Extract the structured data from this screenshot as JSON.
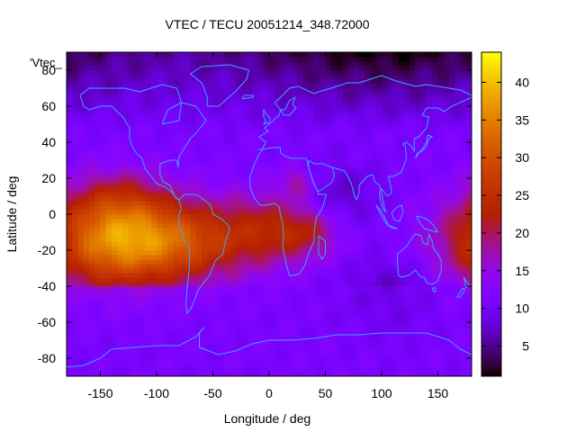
{
  "chart_data": {
    "type": "heatmap",
    "title": "VTEC / TECU 20051214_348.72000",
    "xlabel": "Longitude / deg",
    "ylabel": "Latitude / deg",
    "key_label": "'Vtec_",
    "xlim": [
      -180,
      180
    ],
    "ylim": [
      -90,
      90
    ],
    "x_ticks": [
      -150,
      -100,
      -50,
      0,
      50,
      100,
      150
    ],
    "y_ticks": [
      -80,
      -60,
      -40,
      -20,
      0,
      20,
      40,
      60,
      80
    ],
    "colorbar": {
      "range": [
        1,
        44
      ],
      "ticks": [
        5,
        10,
        15,
        20,
        25,
        30,
        35,
        40
      ],
      "palette": "black-blue-purple-red-orange-yellow"
    },
    "grid": {
      "lon_step": 5,
      "lat_step": 2.5
    },
    "field_components": [
      {
        "lon": -135,
        "lat": -15,
        "amp": 24,
        "lon_sigma": 45,
        "lat_sigma": 18
      },
      {
        "lon": -65,
        "lat": -15,
        "amp": 11,
        "lon_sigma": 40,
        "lat_sigma": 15
      },
      {
        "lon": 0,
        "lat": -8,
        "amp": 9,
        "lon_sigma": 30,
        "lat_sigma": 14
      },
      {
        "lon": 35,
        "lat": -10,
        "amp": 7,
        "lon_sigma": 20,
        "lat_sigma": 10
      },
      {
        "lon": 25,
        "lat": 18,
        "amp": 6,
        "lon_sigma": 12,
        "lat_sigma": 6
      },
      {
        "lon": -135,
        "lat": 8,
        "amp": 6,
        "lon_sigma": 30,
        "lat_sigma": 12
      }
    ],
    "field_background": 11,
    "field_north_drop": {
      "lat_start": 45,
      "per_deg": 0.22,
      "lon": 100,
      "lon_sigma": 80
    },
    "field_south_pockets": [
      {
        "lon": 110,
        "lat": -45,
        "amp": -4,
        "lon_sigma": 30,
        "lat_sigma": 15
      },
      {
        "lon": 60,
        "lat": 10,
        "amp": -4,
        "lon_sigma": 25,
        "lat_sigma": 12
      }
    ],
    "field_south_band": {
      "lat_below": -40,
      "value": 11
    },
    "coastline_color": "#3fa0ff",
    "coastlines": [
      [
        [
          -168,
          66
        ],
        [
          -160,
          70
        ],
        [
          -145,
          70
        ],
        [
          -128,
          70
        ],
        [
          -115,
          68
        ],
        [
          -95,
          72
        ],
        [
          -82,
          70
        ],
        [
          -78,
          62
        ],
        [
          -90,
          58
        ],
        [
          -95,
          50
        ],
        [
          -80,
          52
        ],
        [
          -78,
          62
        ],
        [
          -65,
          60
        ],
        [
          -56,
          52
        ],
        [
          -65,
          45
        ],
        [
          -70,
          42
        ],
        [
          -76,
          36
        ],
        [
          -80,
          32
        ],
        [
          -81,
          26
        ],
        [
          -82,
          30
        ],
        [
          -88,
          30
        ],
        [
          -97,
          28
        ],
        [
          -97,
          22
        ],
        [
          -94,
          18
        ],
        [
          -88,
          16
        ],
        [
          -84,
          10
        ],
        [
          -80,
          8
        ],
        [
          -83,
          9
        ],
        [
          -86,
          12
        ],
        [
          -92,
          15
        ],
        [
          -100,
          17
        ],
        [
          -106,
          22
        ],
        [
          -110,
          25
        ],
        [
          -113,
          31
        ],
        [
          -118,
          34
        ],
        [
          -122,
          38
        ],
        [
          -124,
          42
        ],
        [
          -124,
          48
        ],
        [
          -130,
          54
        ],
        [
          -140,
          60
        ],
        [
          -150,
          60
        ],
        [
          -160,
          58
        ],
        [
          -165,
          60
        ],
        [
          -168,
          66
        ]
      ],
      [
        [
          -80,
          8
        ],
        [
          -75,
          11
        ],
        [
          -67,
          11
        ],
        [
          -62,
          10
        ],
        [
          -52,
          5
        ],
        [
          -50,
          0
        ],
        [
          -44,
          -2
        ],
        [
          -38,
          -5
        ],
        [
          -35,
          -8
        ],
        [
          -39,
          -15
        ],
        [
          -41,
          -22
        ],
        [
          -48,
          -26
        ],
        [
          -53,
          -34
        ],
        [
          -58,
          -38
        ],
        [
          -63,
          -42
        ],
        [
          -66,
          -47
        ],
        [
          -69,
          -52
        ],
        [
          -73,
          -55
        ],
        [
          -74,
          -50
        ],
        [
          -73,
          -42
        ],
        [
          -71,
          -30
        ],
        [
          -71,
          -18
        ],
        [
          -76,
          -14
        ],
        [
          -80,
          -6
        ],
        [
          -80,
          0
        ],
        [
          -78,
          3
        ],
        [
          -80,
          8
        ]
      ],
      [
        [
          -55,
          60
        ],
        [
          -45,
          60
        ],
        [
          -30,
          68
        ],
        [
          -20,
          75
        ],
        [
          -18,
          80
        ],
        [
          -35,
          83
        ],
        [
          -60,
          82
        ],
        [
          -70,
          78
        ],
        [
          -60,
          73
        ],
        [
          -55,
          65
        ],
        [
          -55,
          60
        ]
      ],
      [
        [
          -10,
          36
        ],
        [
          -6,
          36
        ],
        [
          -3,
          40
        ],
        [
          -9,
          43
        ],
        [
          -1,
          46
        ],
        [
          -4,
          48
        ],
        [
          2,
          51
        ],
        [
          5,
          53
        ],
        [
          9,
          55
        ],
        [
          10,
          58
        ],
        [
          5,
          62
        ],
        [
          12,
          66
        ],
        [
          18,
          70
        ],
        [
          26,
          71
        ],
        [
          33,
          69
        ],
        [
          40,
          67
        ],
        [
          44,
          68
        ],
        [
          55,
          70
        ],
        [
          70,
          73
        ],
        [
          80,
          73
        ],
        [
          100,
          77
        ],
        [
          113,
          74
        ],
        [
          130,
          71
        ],
        [
          140,
          72
        ],
        [
          160,
          70
        ],
        [
          170,
          69
        ],
        [
          180,
          66
        ]
      ],
      [
        [
          10,
          58
        ],
        [
          13,
          55
        ],
        [
          18,
          55
        ],
        [
          21,
          57
        ],
        [
          24,
          59
        ],
        [
          21,
          61
        ],
        [
          23,
          65
        ],
        [
          18,
          63
        ],
        [
          14,
          58
        ],
        [
          10,
          58
        ]
      ],
      [
        [
          -17,
          21
        ],
        [
          -17,
          15
        ],
        [
          -13,
          9
        ],
        [
          -8,
          5
        ],
        [
          -3,
          5
        ],
        [
          5,
          6
        ],
        [
          9,
          4
        ],
        [
          10,
          0
        ],
        [
          12,
          -5
        ],
        [
          13,
          -12
        ],
        [
          12,
          -18
        ],
        [
          15,
          -27
        ],
        [
          18,
          -34
        ],
        [
          22,
          -34
        ],
        [
          27,
          -33
        ],
        [
          32,
          -28
        ],
        [
          35,
          -22
        ],
        [
          40,
          -15
        ],
        [
          40,
          -10
        ],
        [
          42,
          -2
        ],
        [
          47,
          3
        ],
        [
          51,
          11
        ],
        [
          44,
          11
        ],
        [
          43,
          13
        ],
        [
          39,
          18
        ],
        [
          35,
          26
        ],
        [
          33,
          31
        ],
        [
          28,
          31
        ],
        [
          20,
          31
        ],
        [
          15,
          32
        ],
        [
          10,
          34
        ],
        [
          10,
          37
        ],
        [
          3,
          37
        ],
        [
          -6,
          36
        ],
        [
          -10,
          32
        ],
        [
          -13,
          28
        ],
        [
          -17,
          21
        ]
      ],
      [
        [
          44,
          -12
        ],
        [
          50,
          -15
        ],
        [
          50,
          -22
        ],
        [
          47,
          -25
        ],
        [
          44,
          -22
        ],
        [
          44,
          -12
        ]
      ],
      [
        [
          35,
          30
        ],
        [
          40,
          28
        ],
        [
          48,
          28
        ],
        [
          56,
          26
        ],
        [
          58,
          22
        ],
        [
          56,
          18
        ],
        [
          52,
          16
        ],
        [
          45,
          13
        ],
        [
          43,
          13
        ],
        [
          39,
          18
        ],
        [
          35,
          26
        ],
        [
          35,
          30
        ]
      ],
      [
        [
          56,
          26
        ],
        [
          62,
          25
        ],
        [
          67,
          24
        ],
        [
          70,
          21
        ],
        [
          73,
          17
        ],
        [
          76,
          10
        ],
        [
          78,
          8
        ],
        [
          80,
          12
        ],
        [
          80,
          16
        ],
        [
          87,
          21
        ],
        [
          92,
          22
        ],
        [
          94,
          18
        ],
        [
          98,
          16
        ],
        [
          100,
          12
        ],
        [
          103,
          2
        ],
        [
          104,
          1
        ],
        [
          101,
          3
        ],
        [
          99,
          8
        ],
        [
          98,
          12
        ],
        [
          100,
          14
        ],
        [
          105,
          10
        ],
        [
          109,
          12
        ],
        [
          108,
          16
        ],
        [
          106,
          21
        ],
        [
          110,
          21
        ],
        [
          117,
          23
        ],
        [
          120,
          27
        ],
        [
          122,
          31
        ],
        [
          121,
          38
        ],
        [
          119,
          39
        ],
        [
          122,
          40
        ],
        [
          126,
          38
        ],
        [
          129,
          35
        ],
        [
          129,
          42
        ],
        [
          133,
          43
        ],
        [
          140,
          48
        ],
        [
          142,
          54
        ],
        [
          136,
          55
        ],
        [
          140,
          59
        ],
        [
          150,
          59
        ],
        [
          156,
          57
        ],
        [
          162,
          60
        ],
        [
          170,
          62
        ],
        [
          180,
          65
        ]
      ],
      [
        [
          130,
          31
        ],
        [
          132,
          34
        ],
        [
          136,
          35
        ],
        [
          140,
          38
        ],
        [
          142,
          42
        ],
        [
          145,
          43
        ],
        [
          141,
          44
        ],
        [
          140,
          40
        ],
        [
          136,
          36
        ],
        [
          133,
          34
        ],
        [
          130,
          31
        ]
      ],
      [
        [
          114,
          -22
        ],
        [
          114,
          -26
        ],
        [
          115,
          -34
        ],
        [
          118,
          -35
        ],
        [
          124,
          -34
        ],
        [
          130,
          -31
        ],
        [
          135,
          -35
        ],
        [
          138,
          -35
        ],
        [
          140,
          -38
        ],
        [
          145,
          -39
        ],
        [
          150,
          -37
        ],
        [
          153,
          -31
        ],
        [
          153,
          -26
        ],
        [
          150,
          -22
        ],
        [
          146,
          -19
        ],
        [
          145,
          -15
        ],
        [
          142,
          -11
        ],
        [
          141,
          -17
        ],
        [
          137,
          -16
        ],
        [
          135,
          -12
        ],
        [
          130,
          -11
        ],
        [
          126,
          -14
        ],
        [
          122,
          -18
        ],
        [
          114,
          -22
        ]
      ],
      [
        [
          145,
          -41
        ],
        [
          148,
          -41
        ],
        [
          148,
          -43
        ],
        [
          146,
          -43
        ],
        [
          145,
          -41
        ]
      ],
      [
        [
          95,
          5
        ],
        [
          98,
          3
        ],
        [
          102,
          -1
        ],
        [
          106,
          -6
        ],
        [
          104,
          -5
        ],
        [
          100,
          -1
        ],
        [
          95,
          5
        ]
      ],
      [
        [
          105,
          -6
        ],
        [
          110,
          -7
        ],
        [
          114,
          -8
        ],
        [
          110,
          -8
        ],
        [
          105,
          -6
        ]
      ],
      [
        [
          109,
          1
        ],
        [
          114,
          4
        ],
        [
          118,
          5
        ],
        [
          119,
          1
        ],
        [
          116,
          -4
        ],
        [
          111,
          -3
        ],
        [
          109,
          1
        ]
      ],
      [
        [
          131,
          -1
        ],
        [
          137,
          -2
        ],
        [
          141,
          -3
        ],
        [
          146,
          -6
        ],
        [
          150,
          -10
        ],
        [
          143,
          -9
        ],
        [
          138,
          -8
        ],
        [
          133,
          -4
        ],
        [
          131,
          -1
        ]
      ],
      [
        [
          173,
          -35
        ],
        [
          176,
          -38
        ],
        [
          178,
          -39
        ],
        [
          175,
          -41
        ],
        [
          173,
          -35
        ]
      ],
      [
        [
          172,
          -41
        ],
        [
          174,
          -42
        ],
        [
          170,
          -46
        ],
        [
          167,
          -46
        ],
        [
          172,
          -41
        ]
      ],
      [
        [
          -180,
          -85
        ],
        [
          -165,
          -84
        ],
        [
          -150,
          -80
        ],
        [
          -140,
          -75
        ],
        [
          -120,
          -74
        ],
        [
          -100,
          -73
        ],
        [
          -80,
          -73
        ],
        [
          -65,
          -68
        ],
        [
          -58,
          -63
        ],
        [
          -62,
          -66
        ],
        [
          -62,
          -74
        ],
        [
          -45,
          -78
        ],
        [
          -30,
          -76
        ],
        [
          -15,
          -72
        ],
        [
          0,
          -70
        ],
        [
          20,
          -70
        ],
        [
          40,
          -69
        ],
        [
          60,
          -67
        ],
        [
          80,
          -67
        ],
        [
          100,
          -66
        ],
        [
          120,
          -66
        ],
        [
          140,
          -66
        ],
        [
          160,
          -70
        ],
        [
          170,
          -75
        ],
        [
          180,
          -78
        ]
      ],
      [
        [
          -5,
          50
        ],
        [
          0,
          51
        ],
        [
          1,
          53
        ],
        [
          -3,
          56
        ],
        [
          -5,
          58
        ],
        [
          -5,
          54
        ],
        [
          -3,
          52
        ],
        [
          -5,
          50
        ]
      ],
      [
        [
          -24,
          64
        ],
        [
          -14,
          65
        ],
        [
          -14,
          66
        ],
        [
          -22,
          66
        ],
        [
          -24,
          64
        ]
      ]
    ]
  }
}
